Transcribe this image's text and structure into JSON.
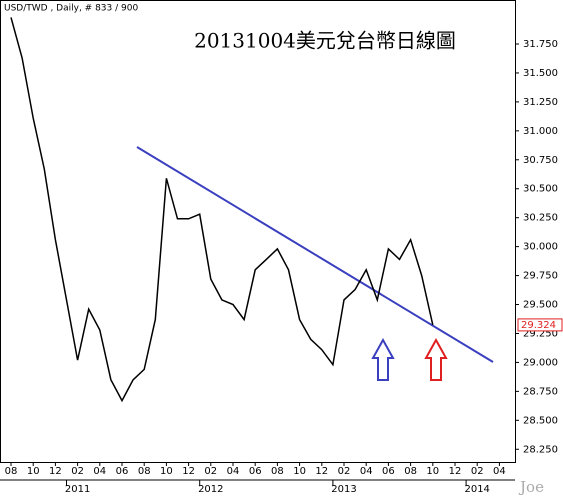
{
  "chart_data": {
    "type": "line",
    "header": "USD/TWD , Daily, # 833 / 900",
    "title": "20131004美元兌台幣日線圖",
    "watermark": "Joe",
    "categories": [
      "08",
      null,
      "10",
      null,
      "12",
      null,
      "02",
      null,
      "04",
      null,
      "06",
      null,
      "08",
      null,
      "10",
      null,
      "12",
      null,
      "02",
      null,
      "04",
      null,
      "06",
      null,
      "08",
      null,
      "10",
      null,
      "12",
      null,
      "02",
      null,
      "04",
      null,
      "06",
      null,
      "08",
      null,
      "10",
      null,
      "12",
      null,
      "02",
      null,
      "04"
    ],
    "year_labels": [
      "2011",
      "2012",
      "2013",
      "2014"
    ],
    "series": [
      {
        "name": "USD/TWD",
        "color": "#000000",
        "values": [
          31.98,
          31.63,
          31.11,
          30.67,
          30.06,
          29.54,
          29.02,
          29.46,
          29.28,
          28.85,
          28.67,
          28.85,
          28.94,
          29.37,
          30.59,
          30.24,
          30.24,
          30.28,
          29.72,
          29.54,
          29.5,
          29.37,
          29.8,
          29.89,
          29.98,
          29.8,
          29.37,
          29.2,
          29.11,
          28.98,
          29.54,
          29.63,
          29.8,
          29.54,
          29.98,
          29.89,
          30.06,
          29.75,
          29.324,
          null,
          null,
          null,
          null,
          null,
          null
        ]
      }
    ],
    "ylim": [
      28.14,
      32.13
    ],
    "yticks": [
      {
        "value": 28.25,
        "label": "28.250"
      },
      {
        "value": 28.5,
        "label": "28.500"
      },
      {
        "value": 28.75,
        "label": "28.750"
      },
      {
        "value": 29,
        "label": "29.000"
      },
      {
        "value": 29.25,
        "label": "29.250"
      },
      {
        "value": 29.5,
        "label": "29.500"
      },
      {
        "value": 29.75,
        "label": "29.750"
      },
      {
        "value": 30,
        "label": "30.000"
      },
      {
        "value": 30.25,
        "label": "30.250"
      },
      {
        "value": 30.5,
        "label": "30.500"
      },
      {
        "value": 30.75,
        "label": "30.750"
      },
      {
        "value": 31,
        "label": "31.000"
      },
      {
        "value": 31.25,
        "label": "31.250"
      },
      {
        "value": 31.5,
        "label": "31.500"
      },
      {
        "value": 31.75,
        "label": "31.750"
      }
    ],
    "grid": false
  }
}
